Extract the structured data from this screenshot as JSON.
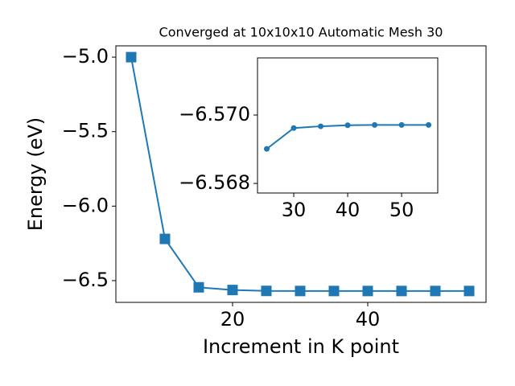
{
  "chart_data": [
    {
      "type": "line",
      "title": "Converged at 10x10x10 Automatic Mesh 30",
      "x_label": "Increment in K point",
      "y_label": "Energy (eV)",
      "x": [
        5,
        10,
        15,
        20,
        25,
        30,
        35,
        40,
        45,
        50,
        55
      ],
      "series": [
        {
          "color": "#1f77b4",
          "marker": "square",
          "values": [
            -5.0,
            -6.22,
            -6.545,
            -6.563,
            -6.569,
            -6.5696,
            -6.5697,
            -6.5697,
            -6.5697,
            -6.5697,
            -6.5697
          ]
        }
      ],
      "xlim": [
        2.74,
        57.5
      ],
      "ylim": [
        -6.646,
        -4.924
      ],
      "xticks": [
        20,
        40
      ],
      "yticks": [
        {
          "value": -6.5,
          "label": "−6.5"
        },
        {
          "value": -6.0,
          "label": "−6.0"
        },
        {
          "value": -5.5,
          "label": "−5.5"
        },
        {
          "value": -5.0,
          "label": "−5.0"
        }
      ]
    },
    {
      "type": "line",
      "x": [
        25,
        30,
        35,
        40,
        45,
        50,
        55
      ],
      "series": [
        {
          "color": "#1f77b4",
          "marker": "circle",
          "values": [
            -6.56901,
            -6.56962,
            -6.56967,
            -6.5697,
            -6.56971,
            -6.56971,
            -6.56971
          ]
        }
      ],
      "xlim": [
        23.28,
        56.7
      ],
      "ylim": [
        -6.56772,
        -6.57167
      ],
      "xticks": [
        30,
        40,
        50
      ],
      "yticks": [
        {
          "value": -6.568,
          "label": "−6.568"
        },
        {
          "value": -6.57,
          "label": "−6.570"
        }
      ]
    }
  ]
}
